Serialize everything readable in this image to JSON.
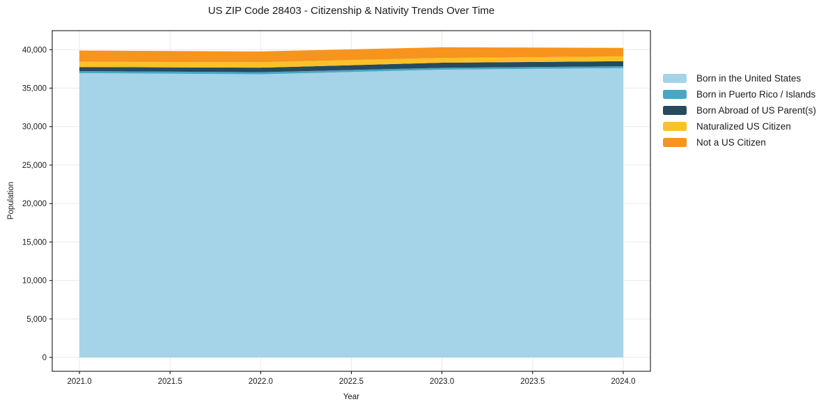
{
  "chart_data": {
    "type": "area",
    "stacked": true,
    "title": "US ZIP Code 28403 - Citizenship & Nativity Trends Over Time",
    "xlabel": "Year",
    "ylabel": "Population",
    "x": [
      2021,
      2022,
      2023,
      2024
    ],
    "series": [
      {
        "name": "Born in the United States",
        "color": "#a5d3e8",
        "values": [
          36950,
          36800,
          37400,
          37600
        ]
      },
      {
        "name": "Born in Puerto Rico / Islands",
        "color": "#47a8c5",
        "values": [
          270,
          270,
          240,
          250
        ]
      },
      {
        "name": "Born Abroad of US Parent(s)",
        "color": "#254b5e",
        "values": [
          520,
          590,
          660,
          650
        ]
      },
      {
        "name": "Naturalized US Citizen",
        "color": "#fcc128",
        "values": [
          680,
          710,
          630,
          610
        ]
      },
      {
        "name": "Not a US Citizen",
        "color": "#f7941d",
        "values": [
          1470,
          1400,
          1380,
          1120
        ]
      }
    ],
    "xticks": [
      2021.0,
      2021.5,
      2022.0,
      2022.5,
      2023.0,
      2023.5,
      2024.0
    ],
    "xtick_labels": [
      "2021.0",
      "2021.5",
      "2022.0",
      "2022.5",
      "2023.0",
      "2023.5",
      "2024.0"
    ],
    "yticks": [
      0,
      5000,
      10000,
      15000,
      20000,
      25000,
      30000,
      35000,
      40000
    ],
    "ytick_labels": [
      "0",
      "5,000",
      "10,000",
      "15,000",
      "20,000",
      "25,000",
      "30,000",
      "35,000",
      "40,000"
    ],
    "xlim": [
      2020.85,
      2024.15
    ],
    "ylim": [
      -1800,
      42470
    ],
    "grid": true,
    "legend_position": "center right outside"
  },
  "colors": {
    "grid": "#e9e9e9",
    "spine": "#000000",
    "tick_text": "#1a1a1a",
    "background": "#ffffff"
  }
}
